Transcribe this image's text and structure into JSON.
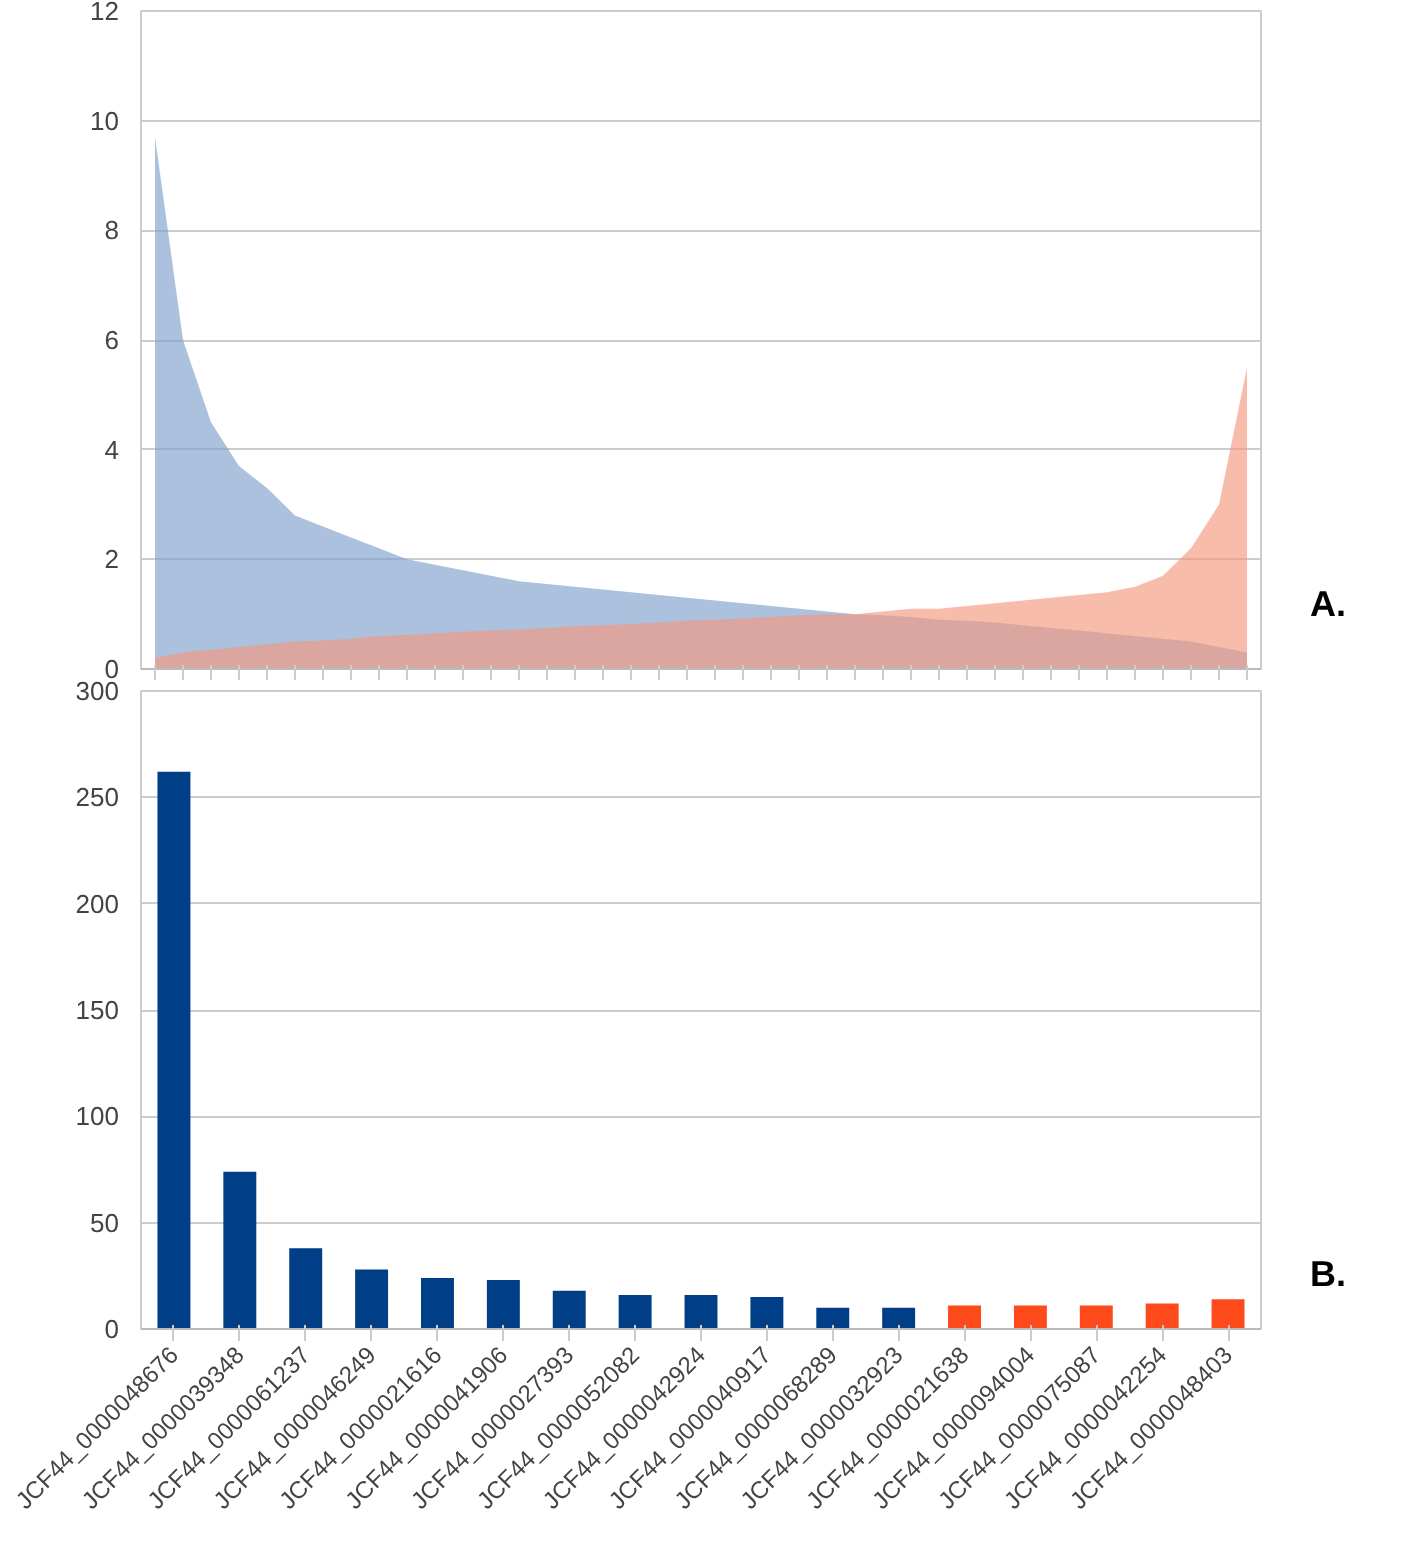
{
  "chart_data": [
    {
      "type": "area",
      "categories": [
        null,
        null,
        null,
        null,
        null,
        null,
        null,
        null,
        null,
        null,
        null,
        null,
        null,
        null,
        null,
        null,
        null,
        null,
        null,
        null,
        null,
        null,
        null,
        null,
        null,
        null,
        null,
        null,
        null,
        null,
        null,
        null,
        null,
        null,
        null,
        null,
        null,
        null,
        null,
        null
      ],
      "series": [
        {
          "color": "#7f9fcc",
          "values": [
            9.7,
            6.0,
            4.5,
            3.7,
            3.3,
            2.8,
            2.6,
            2.4,
            2.2,
            2.0,
            1.9,
            1.8,
            1.7,
            1.6,
            1.55,
            1.5,
            1.45,
            1.4,
            1.35,
            1.3,
            1.25,
            1.2,
            1.15,
            1.1,
            1.05,
            1.0,
            0.98,
            0.95,
            0.9,
            0.88,
            0.85,
            0.8,
            0.75,
            0.7,
            0.65,
            0.6,
            0.55,
            0.5,
            0.4,
            0.3
          ]
        },
        {
          "color": "#f2987c",
          "values": [
            0.2,
            0.3,
            0.35,
            0.4,
            0.45,
            0.5,
            0.52,
            0.55,
            0.6,
            0.62,
            0.65,
            0.68,
            0.7,
            0.72,
            0.75,
            0.78,
            0.8,
            0.82,
            0.85,
            0.88,
            0.9,
            0.92,
            0.95,
            0.98,
            1.0,
            1.0,
            1.05,
            1.1,
            1.1,
            1.15,
            1.2,
            1.25,
            1.3,
            1.35,
            1.4,
            1.5,
            1.7,
            2.2,
            3.0,
            5.5
          ]
        }
      ],
      "ylim": [
        0,
        12
      ],
      "yticks": [
        0,
        2,
        4,
        6,
        8,
        10,
        12
      ],
      "grid": "y",
      "tick_labels": "y",
      "annotations": [
        "A."
      ]
    },
    {
      "type": "bar",
      "categories": [
        "JCF44_0000048676",
        "JCF44_0000039348",
        "JCF44_0000061237",
        "JCF44_0000046249",
        "JCF44_0000021616",
        "JCF44_0000041906",
        "JCF44_0000027393",
        "JCF44_0000052082",
        "JCF44_0000042924",
        "JCF44_0000040917",
        "JCF44_0000068289",
        "JCF44_0000032923",
        "JCF44_0000021638",
        "JCF44_0000094004",
        "JCF44_0000075087",
        "JCF44_0000042254",
        "JCF44_0000048403"
      ],
      "values": [
        262,
        74,
        38,
        28,
        24,
        23,
        18,
        16,
        16,
        15,
        10,
        10,
        11,
        11,
        11,
        12,
        14
      ],
      "colors": [
        "#003f87",
        "#003f87",
        "#003f87",
        "#003f87",
        "#003f87",
        "#003f87",
        "#003f87",
        "#003f87",
        "#003f87",
        "#003f87",
        "#003f87",
        "#003f87",
        "#ff4a1c",
        "#ff4a1c",
        "#ff4a1c",
        "#ff4a1c",
        "#ff4a1c"
      ],
      "ylim": [
        0,
        300
      ],
      "yticks": [
        0,
        50,
        100,
        150,
        200,
        250,
        300
      ],
      "grid": "y",
      "annotations": [
        "B."
      ]
    }
  ]
}
